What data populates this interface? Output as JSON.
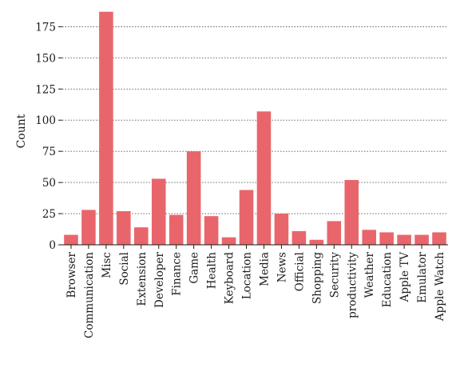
{
  "chart_data": {
    "type": "bar",
    "title": "",
    "xlabel": "",
    "ylabel": "Count",
    "ylim": [
      0,
      190
    ],
    "yticks": [
      0,
      25,
      50,
      75,
      100,
      125,
      150,
      175
    ],
    "grid": "horizontal-dotted",
    "bar_color": "#e8666b",
    "categories": [
      "Browser",
      "Communication",
      "Misc",
      "Social",
      "Extension",
      "Developer",
      "Finance",
      "Game",
      "Health",
      "Keyboard",
      "Location",
      "Media",
      "News",
      "Official",
      "Shopping",
      "Security",
      "productivity",
      "Weather",
      "Education",
      "Apple TV",
      "Emulator",
      "Apple Watch"
    ],
    "values": [
      8,
      28,
      187,
      27,
      14,
      53,
      24,
      75,
      23,
      6,
      44,
      107,
      25,
      11,
      4,
      19,
      52,
      12,
      10,
      8,
      8,
      10
    ]
  }
}
